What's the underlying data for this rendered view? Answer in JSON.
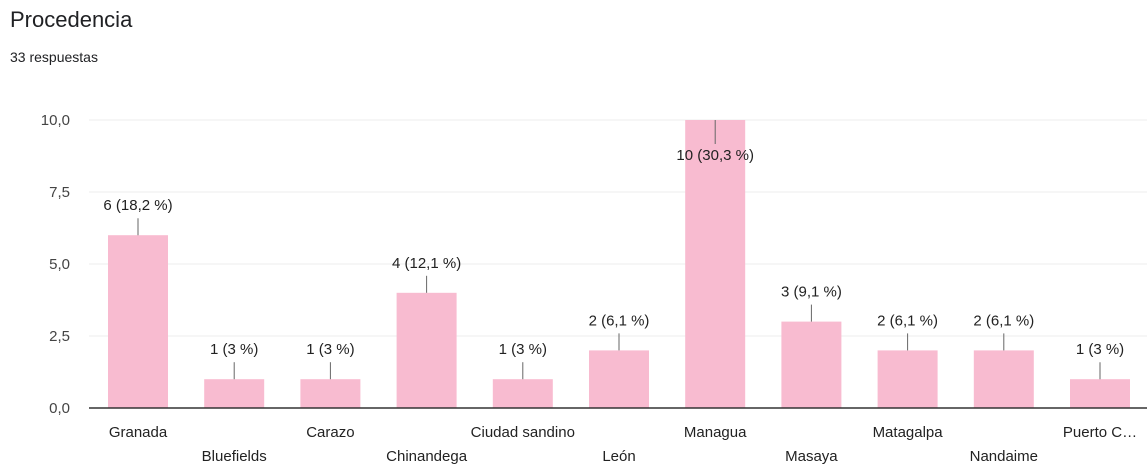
{
  "header": {
    "title": "Procedencia",
    "subtitle": "33 respuestas"
  },
  "colors": {
    "bar": "#f8bbd0",
    "grid": "#eeeeee",
    "axis": "#333333",
    "leader": "#666666"
  },
  "chart_data": {
    "type": "bar",
    "title": "Procedencia",
    "subtitle": "33 respuestas",
    "xlabel": "",
    "ylabel": "",
    "ylim": [
      0,
      10
    ],
    "yticks": [
      "0,0",
      "2,5",
      "5,0",
      "7,5",
      "10,0"
    ],
    "grid": true,
    "categories": [
      "Granada",
      "Bluefields",
      "Carazo",
      "Chinandega",
      "Ciudad sandino",
      "León",
      "Managua",
      "Masaya",
      "Matagalpa",
      "Nandaime",
      "Puerto C…"
    ],
    "values": [
      6,
      1,
      1,
      4,
      1,
      2,
      10,
      3,
      2,
      2,
      1
    ],
    "data_labels": [
      "6 (18,2 %)",
      "1 (3 %)",
      "1 (3 %)",
      "4 (12,1 %)",
      "1 (3 %)",
      "2 (6,1 %)",
      "10 (30,3 %)",
      "3 (9,1 %)",
      "2 (6,1 %)",
      "2 (6,1 %)",
      "1 (3 %)"
    ]
  }
}
